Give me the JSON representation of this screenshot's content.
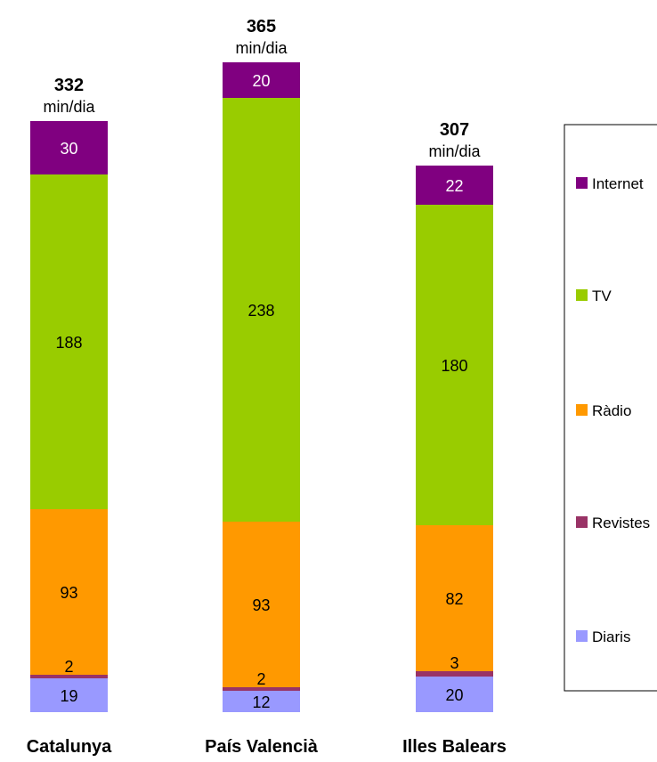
{
  "chart_data": {
    "type": "bar",
    "stacked": true,
    "categories": [
      "Catalunya",
      "País Valencià",
      "Illes Balears"
    ],
    "totals": [
      "332",
      "365",
      "307"
    ],
    "total_unit": "min/dia",
    "series": [
      {
        "name": "Diaris",
        "color": "#9999ff",
        "values": [
          19,
          12,
          20
        ]
      },
      {
        "name": "Revistes",
        "color": "#993366",
        "values": [
          2,
          2,
          3
        ]
      },
      {
        "name": "Ràdio",
        "color": "#ff9900",
        "values": [
          93,
          93,
          82
        ]
      },
      {
        "name": "TV",
        "color": "#99cc00",
        "values": [
          188,
          238,
          180
        ]
      },
      {
        "name": "Internet",
        "color": "#800080",
        "values": [
          30,
          20,
          22
        ]
      }
    ],
    "legend_labels": [
      "Internet",
      "TV",
      "Ràdio",
      "Revistes",
      "Diaris"
    ],
    "legend_position": "right",
    "grid": false,
    "axes_visible": false
  }
}
